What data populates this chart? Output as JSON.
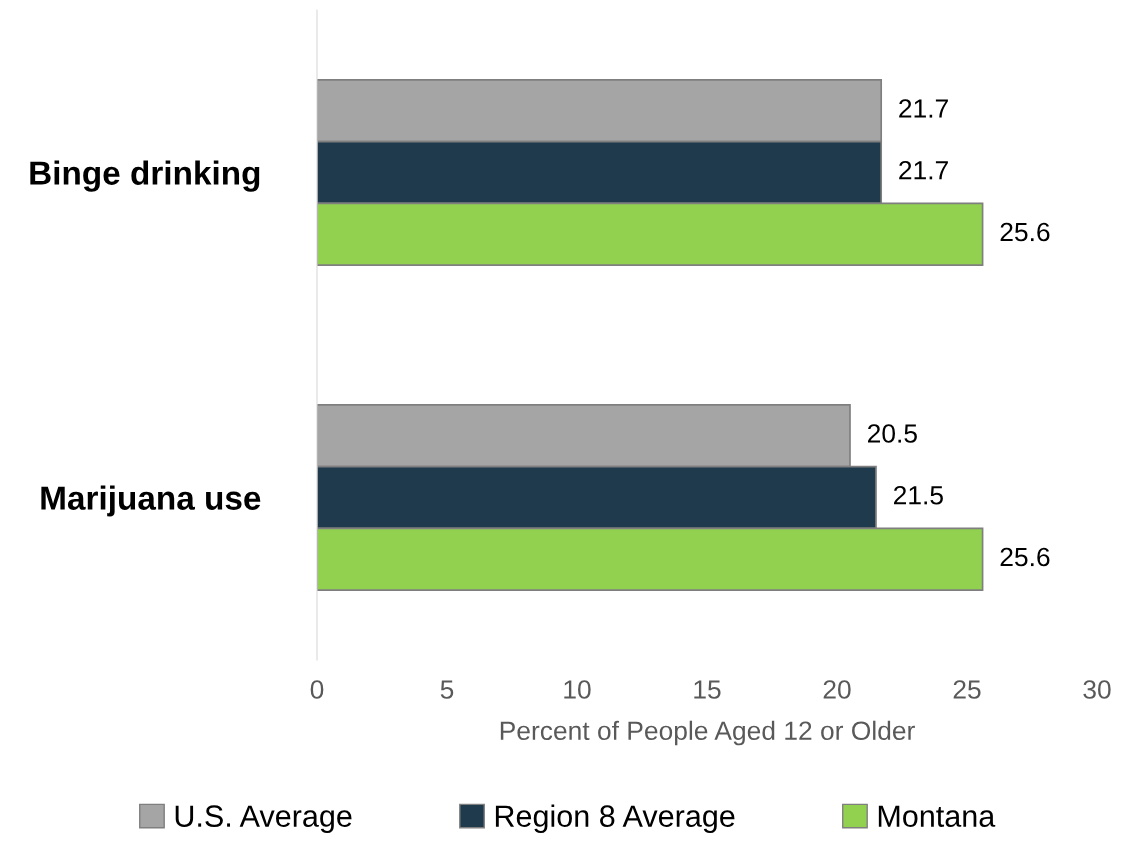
{
  "chart_data": {
    "type": "bar",
    "orientation": "horizontal",
    "xlabel": "Percent of People Aged 12 or Older",
    "categories": [
      "Binge drinking",
      "Marijuana use"
    ],
    "series": [
      {
        "name": "U.S. Average",
        "color": "#a5a5a5",
        "values": [
          21.7,
          20.5
        ]
      },
      {
        "name": "Region 8 Average",
        "color": "#1f3a4d",
        "values": [
          21.7,
          21.5
        ]
      },
      {
        "name": "Montana",
        "color": "#92d050",
        "values": [
          25.6,
          25.6
        ]
      }
    ],
    "xlim": [
      0,
      30
    ],
    "xticks": [
      0,
      5,
      10,
      15,
      20,
      25,
      30
    ],
    "data_labels": true,
    "grid": false,
    "legend": "bottom"
  }
}
